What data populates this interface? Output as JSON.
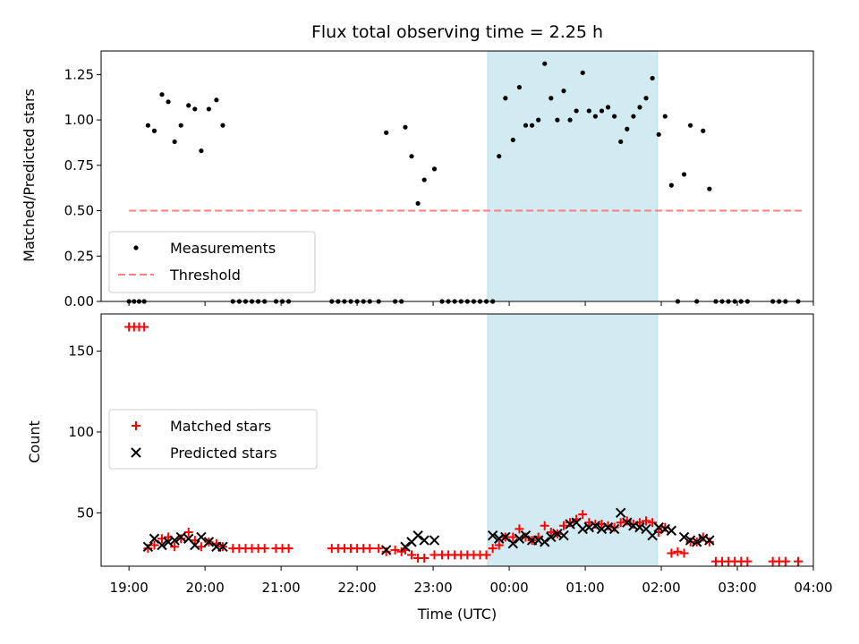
{
  "chart_data": [
    {
      "type": "scatter",
      "title": "Flux total observing time = 2.25 h",
      "ylabel": "Matched/Predicted stars",
      "xlim": [
        "18:38",
        "04:00"
      ],
      "ylim": [
        0,
        1.38
      ],
      "yticks": [
        "0.00",
        "0.25",
        "0.50",
        "0.75",
        "1.00",
        "1.25"
      ],
      "shaded_region": {
        "start": "23:43",
        "end": "01:57",
        "color": "#add8e6"
      },
      "legend": {
        "position": "lower-left",
        "entries": [
          "Measurements",
          "Threshold"
        ]
      },
      "series": [
        {
          "name": "Measurements",
          "marker": "dot",
          "color": "#000000",
          "points": [
            [
              "19:00",
              0
            ],
            [
              "19:04",
              0
            ],
            [
              "19:08",
              0
            ],
            [
              "19:12",
              0
            ],
            [
              "19:15",
              0.97
            ],
            [
              "19:20",
              0.94
            ],
            [
              "19:26",
              1.14
            ],
            [
              "19:31",
              1.1
            ],
            [
              "19:36",
              0.88
            ],
            [
              "19:41",
              0.97
            ],
            [
              "19:47",
              1.08
            ],
            [
              "19:52",
              1.06
            ],
            [
              "19:57",
              0.83
            ],
            [
              "20:03",
              1.06
            ],
            [
              "20:09",
              1.11
            ],
            [
              "20:14",
              0.97
            ],
            [
              "20:22",
              0
            ],
            [
              "20:27",
              0
            ],
            [
              "20:32",
              0
            ],
            [
              "20:37",
              0
            ],
            [
              "20:42",
              0
            ],
            [
              "20:47",
              0
            ],
            [
              "20:56",
              0
            ],
            [
              "21:01",
              0
            ],
            [
              "21:06",
              0
            ],
            [
              "21:40",
              0
            ],
            [
              "21:45",
              0
            ],
            [
              "21:50",
              0
            ],
            [
              "21:55",
              0
            ],
            [
              "22:00",
              0
            ],
            [
              "22:05",
              0
            ],
            [
              "22:10",
              0
            ],
            [
              "22:17",
              0
            ],
            [
              "22:23",
              0.93
            ],
            [
              "22:30",
              0
            ],
            [
              "22:35",
              0
            ],
            [
              "22:38",
              0.96
            ],
            [
              "22:43",
              0.8
            ],
            [
              "22:48",
              0.54
            ],
            [
              "22:53",
              0.67
            ],
            [
              "23:01",
              0.73
            ],
            [
              "23:07",
              0
            ],
            [
              "23:12",
              0
            ],
            [
              "23:17",
              0
            ],
            [
              "23:22",
              0
            ],
            [
              "23:27",
              0
            ],
            [
              "23:32",
              0
            ],
            [
              "23:37",
              0
            ],
            [
              "23:42",
              0
            ],
            [
              "23:47",
              0
            ],
            [
              "23:52",
              0.8
            ],
            [
              "23:57",
              1.12
            ],
            [
              "00:03",
              0.89
            ],
            [
              "00:08",
              1.18
            ],
            [
              "00:13",
              0.97
            ],
            [
              "00:18",
              0.97
            ],
            [
              "00:23",
              1.0
            ],
            [
              "00:28",
              1.31
            ],
            [
              "00:33",
              1.12
            ],
            [
              "00:38",
              1.0
            ],
            [
              "00:43",
              1.16
            ],
            [
              "00:48",
              1.0
            ],
            [
              "00:53",
              1.05
            ],
            [
              "00:58",
              1.26
            ],
            [
              "01:03",
              1.05
            ],
            [
              "01:08",
              1.02
            ],
            [
              "01:13",
              1.05
            ],
            [
              "01:18",
              1.07
            ],
            [
              "01:23",
              1.02
            ],
            [
              "01:28",
              0.88
            ],
            [
              "01:33",
              0.95
            ],
            [
              "01:38",
              1.02
            ],
            [
              "01:43",
              1.07
            ],
            [
              "01:48",
              1.12
            ],
            [
              "01:53",
              1.23
            ],
            [
              "01:58",
              0.92
            ],
            [
              "02:03",
              1.02
            ],
            [
              "02:08",
              0.64
            ],
            [
              "02:13",
              0
            ],
            [
              "02:18",
              0.7
            ],
            [
              "02:23",
              0.97
            ],
            [
              "02:28",
              0
            ],
            [
              "02:33",
              0.94
            ],
            [
              "02:38",
              0.62
            ],
            [
              "02:43",
              0
            ],
            [
              "02:48",
              0
            ],
            [
              "02:53",
              0
            ],
            [
              "02:58",
              0
            ],
            [
              "03:03",
              0
            ],
            [
              "03:08",
              0
            ],
            [
              "03:28",
              0
            ],
            [
              "03:33",
              0
            ],
            [
              "03:38",
              0
            ],
            [
              "03:48",
              0
            ]
          ]
        },
        {
          "name": "Threshold",
          "style": "dashed",
          "color": "#ff7f7f",
          "points": [
            [
              "19:00",
              0.5
            ],
            [
              "03:51",
              0.5
            ]
          ]
        }
      ]
    },
    {
      "type": "scatter",
      "xlabel": "Time (UTC)",
      "ylabel": "Count",
      "xlim": [
        "18:38",
        "04:00"
      ],
      "ylim": [
        17,
        173
      ],
      "yticks": [
        "50",
        "100",
        "150"
      ],
      "xticks": [
        "19:00",
        "20:00",
        "21:00",
        "22:00",
        "23:00",
        "00:00",
        "01:00",
        "02:00",
        "03:00",
        "04:00"
      ],
      "shaded_region": {
        "start": "23:43",
        "end": "01:57",
        "color": "#add8e6"
      },
      "legend": {
        "position": "center-left",
        "entries": [
          "Matched stars",
          "Predicted stars"
        ]
      },
      "series": [
        {
          "name": "Matched stars",
          "marker": "plus",
          "color": "#ff0000",
          "points": [
            [
              "19:00",
              165
            ],
            [
              "19:04",
              165
            ],
            [
              "19:08",
              165
            ],
            [
              "19:12",
              165
            ],
            [
              "19:15",
              28
            ],
            [
              "19:20",
              30
            ],
            [
              "19:26",
              34
            ],
            [
              "19:31",
              35
            ],
            [
              "19:36",
              29
            ],
            [
              "19:41",
              34
            ],
            [
              "19:47",
              38
            ],
            [
              "19:52",
              33
            ],
            [
              "19:57",
              29
            ],
            [
              "20:03",
              32
            ],
            [
              "20:09",
              31
            ],
            [
              "20:14",
              29
            ],
            [
              "20:22",
              28
            ],
            [
              "20:27",
              28
            ],
            [
              "20:32",
              28
            ],
            [
              "20:37",
              28
            ],
            [
              "20:42",
              28
            ],
            [
              "20:47",
              28
            ],
            [
              "20:56",
              28
            ],
            [
              "21:01",
              28
            ],
            [
              "21:06",
              28
            ],
            [
              "21:40",
              28
            ],
            [
              "21:45",
              28
            ],
            [
              "21:50",
              28
            ],
            [
              "21:55",
              28
            ],
            [
              "22:00",
              28
            ],
            [
              "22:05",
              28
            ],
            [
              "22:10",
              28
            ],
            [
              "22:17",
              28
            ],
            [
              "22:23",
              26
            ],
            [
              "22:30",
              27
            ],
            [
              "22:35",
              26
            ],
            [
              "22:38",
              27
            ],
            [
              "22:43",
              24
            ],
            [
              "22:48",
              22
            ],
            [
              "22:53",
              22
            ],
            [
              "23:01",
              24
            ],
            [
              "23:07",
              24
            ],
            [
              "23:12",
              24
            ],
            [
              "23:17",
              24
            ],
            [
              "23:22",
              24
            ],
            [
              "23:27",
              24
            ],
            [
              "23:32",
              24
            ],
            [
              "23:37",
              24
            ],
            [
              "23:42",
              24
            ],
            [
              "23:47",
              28
            ],
            [
              "23:52",
              30
            ],
            [
              "23:57",
              35
            ],
            [
              "00:03",
              35
            ],
            [
              "00:08",
              40
            ],
            [
              "00:13",
              35
            ],
            [
              "00:18",
              33
            ],
            [
              "00:23",
              35
            ],
            [
              "00:28",
              42
            ],
            [
              "00:33",
              38
            ],
            [
              "00:38",
              37
            ],
            [
              "00:43",
              42
            ],
            [
              "00:48",
              44
            ],
            [
              "00:53",
              46
            ],
            [
              "00:58",
              49
            ],
            [
              "01:03",
              44
            ],
            [
              "01:08",
              43
            ],
            [
              "01:13",
              43
            ],
            [
              "01:18",
              42
            ],
            [
              "01:23",
              41
            ],
            [
              "01:28",
              44
            ],
            [
              "01:33",
              45
            ],
            [
              "01:38",
              43
            ],
            [
              "01:43",
              44
            ],
            [
              "01:48",
              45
            ],
            [
              "01:53",
              44
            ],
            [
              "01:58",
              38
            ],
            [
              "02:03",
              41
            ],
            [
              "02:08",
              25
            ],
            [
              "02:13",
              26
            ],
            [
              "02:18",
              25
            ],
            [
              "02:23",
              32
            ],
            [
              "02:28",
              32
            ],
            [
              "02:33",
              35
            ],
            [
              "02:38",
              32
            ],
            [
              "02:43",
              20
            ],
            [
              "02:48",
              20
            ],
            [
              "02:53",
              20
            ],
            [
              "02:58",
              20
            ],
            [
              "03:03",
              20
            ],
            [
              "03:08",
              20
            ],
            [
              "03:28",
              20
            ],
            [
              "03:33",
              20
            ],
            [
              "03:38",
              20
            ],
            [
              "03:48",
              20
            ]
          ]
        },
        {
          "name": "Predicted stars",
          "marker": "x",
          "color": "#000000",
          "points": [
            [
              "19:15",
              29
            ],
            [
              "19:20",
              34
            ],
            [
              "19:26",
              30
            ],
            [
              "19:31",
              32
            ],
            [
              "19:36",
              33
            ],
            [
              "19:41",
              35
            ],
            [
              "19:47",
              34
            ],
            [
              "19:52",
              30
            ],
            [
              "19:57",
              35
            ],
            [
              "20:03",
              32
            ],
            [
              "20:09",
              29
            ],
            [
              "20:14",
              29
            ],
            [
              "22:23",
              27
            ],
            [
              "22:38",
              29
            ],
            [
              "22:43",
              32
            ],
            [
              "22:48",
              36
            ],
            [
              "22:53",
              33
            ],
            [
              "23:01",
              33
            ],
            [
              "23:47",
              36
            ],
            [
              "23:52",
              34
            ],
            [
              "23:57",
              35
            ],
            [
              "00:03",
              31
            ],
            [
              "00:08",
              34
            ],
            [
              "00:13",
              36
            ],
            [
              "00:18",
              33
            ],
            [
              "00:23",
              33
            ],
            [
              "00:28",
              32
            ],
            [
              "00:33",
              35
            ],
            [
              "00:38",
              37
            ],
            [
              "00:43",
              36
            ],
            [
              "00:48",
              43
            ],
            [
              "00:53",
              44
            ],
            [
              "00:58",
              40
            ],
            [
              "01:03",
              41
            ],
            [
              "01:08",
              42
            ],
            [
              "01:13",
              40
            ],
            [
              "01:18",
              41
            ],
            [
              "01:23",
              40
            ],
            [
              "01:28",
              50
            ],
            [
              "01:33",
              44
            ],
            [
              "01:38",
              42
            ],
            [
              "01:43",
              41
            ],
            [
              "01:48",
              40
            ],
            [
              "01:53",
              36
            ],
            [
              "01:58",
              41
            ],
            [
              "02:03",
              40
            ],
            [
              "02:08",
              39
            ],
            [
              "02:18",
              35
            ],
            [
              "02:23",
              33
            ],
            [
              "02:28",
              32
            ],
            [
              "02:33",
              34
            ],
            [
              "02:38",
              33
            ]
          ]
        }
      ]
    }
  ]
}
